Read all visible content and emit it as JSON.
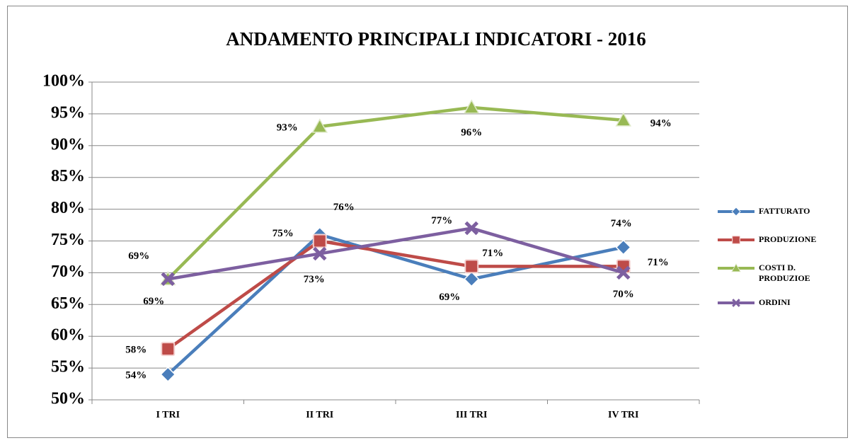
{
  "chart_data": {
    "type": "line",
    "title": "ANDAMENTO PRINCIPALI INDICATORI - 2016",
    "categories": [
      "I TRI",
      "II TRI",
      "III TRI",
      "IV TRI"
    ],
    "series": [
      {
        "name": "FATTURATO",
        "color": "#4a7ebb",
        "values": [
          54,
          76,
          69,
          74
        ],
        "value_labels": [
          "54%",
          "76%",
          "69%",
          "74%"
        ]
      },
      {
        "name": "PRODUZIONE",
        "color": "#be4b48",
        "values": [
          58,
          75,
          71,
          71
        ],
        "value_labels": [
          "58%",
          "75%",
          "71%",
          "71%"
        ]
      },
      {
        "name": "COSTI D. PRODUZIOE",
        "color": "#98b954",
        "values": [
          69,
          93,
          96,
          94
        ],
        "value_labels": [
          "69%",
          "93%",
          "96%",
          "94%"
        ]
      },
      {
        "name": "ORDINI",
        "color": "#7d5fa0",
        "values": [
          69,
          73,
          77,
          70
        ],
        "value_labels": [
          "69%",
          "73%",
          "77%",
          "70%"
        ]
      }
    ],
    "ylim": [
      50,
      100
    ],
    "yticks": [
      {
        "value": 50,
        "label": "50%"
      },
      {
        "value": 55,
        "label": "55%"
      },
      {
        "value": 60,
        "label": "60%"
      },
      {
        "value": 65,
        "label": "65%"
      },
      {
        "value": 70,
        "label": "70%"
      },
      {
        "value": 75,
        "label": "75%"
      },
      {
        "value": 80,
        "label": "80%"
      },
      {
        "value": 85,
        "label": "85%"
      },
      {
        "value": 90,
        "label": "90%"
      },
      {
        "value": 95,
        "label": "95%"
      },
      {
        "value": 100,
        "label": "100%"
      }
    ],
    "grid": true,
    "legend": "right"
  }
}
